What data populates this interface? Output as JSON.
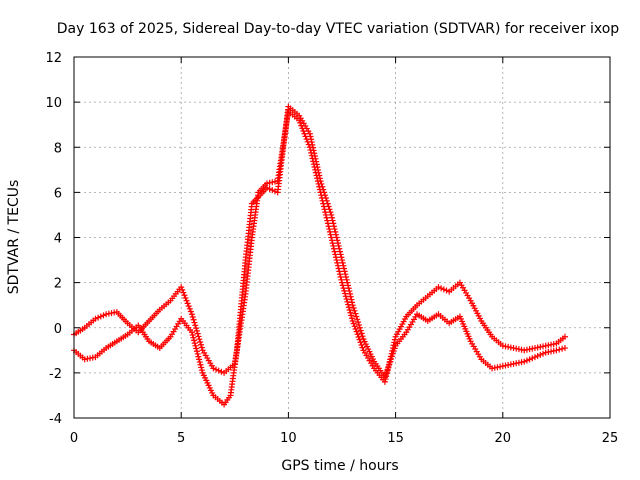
{
  "chart_data": {
    "type": "scatter",
    "title": "Day 163 of 2025, Sidereal Day-to-day VTEC variation (SDTVAR) for receiver ixop",
    "xlabel": "GPS time / hours",
    "ylabel": "SDTVAR / TECUs",
    "xlim": [
      0,
      25
    ],
    "ylim": [
      -4,
      12
    ],
    "xticks": [
      0,
      5,
      10,
      15,
      20,
      25
    ],
    "yticks": [
      -4,
      -2,
      0,
      2,
      4,
      6,
      8,
      10,
      12
    ],
    "grid": true,
    "marker": "plus",
    "color": "#ff0000",
    "series": [
      {
        "name": "trace A",
        "x": [
          0.0,
          0.5,
          1.0,
          1.5,
          2.0,
          2.5,
          3.0,
          3.5,
          4.0,
          4.5,
          5.0,
          5.5,
          6.0,
          6.5,
          7.0,
          7.5,
          8.0,
          8.3,
          8.6,
          9.0,
          9.5,
          10.0,
          10.5,
          11.0,
          11.5,
          12.0,
          12.5,
          13.0,
          13.5,
          14.0,
          14.5,
          15.0,
          15.5,
          16.0,
          16.5,
          17.0,
          17.5,
          18.0,
          18.5,
          19.0,
          19.5,
          20.0,
          20.5,
          21.0,
          21.5,
          22.0,
          22.5,
          22.9
        ],
        "y": [
          -0.3,
          0.0,
          0.4,
          0.6,
          0.7,
          0.2,
          -0.2,
          0.3,
          0.8,
          1.2,
          1.8,
          0.6,
          -1.0,
          -1.8,
          -2.0,
          -1.6,
          1.5,
          4.0,
          6.0,
          6.4,
          6.5,
          9.6,
          9.2,
          8.0,
          6.0,
          4.0,
          2.0,
          0.3,
          -1.0,
          -1.8,
          -2.4,
          -0.4,
          0.5,
          1.0,
          1.4,
          1.8,
          1.6,
          2.0,
          1.2,
          0.3,
          -0.4,
          -0.8,
          -0.9,
          -1.0,
          -0.9,
          -0.8,
          -0.7,
          -0.4
        ]
      },
      {
        "name": "trace B",
        "x": [
          0.0,
          0.5,
          1.0,
          1.5,
          2.0,
          2.5,
          3.0,
          3.5,
          4.0,
          4.5,
          5.0,
          5.5,
          6.0,
          6.5,
          7.0,
          7.3,
          7.6,
          8.0,
          8.3,
          8.6,
          9.0,
          9.5,
          10.0,
          10.5,
          11.0,
          11.5,
          12.0,
          12.5,
          13.0,
          13.5,
          14.0,
          14.5,
          15.0,
          15.5,
          16.0,
          16.5,
          17.0,
          17.5,
          18.0,
          18.5,
          19.0,
          19.5,
          20.0,
          20.5,
          21.0,
          21.5,
          22.0,
          22.5,
          22.9
        ],
        "y": [
          -1.0,
          -1.4,
          -1.3,
          -0.9,
          -0.6,
          -0.3,
          0.1,
          -0.6,
          -0.9,
          -0.4,
          0.4,
          -0.2,
          -2.0,
          -3.0,
          -3.4,
          -3.0,
          -1.0,
          3.0,
          5.5,
          5.8,
          6.2,
          6.0,
          9.8,
          9.4,
          8.6,
          6.5,
          5.0,
          3.0,
          1.0,
          -0.5,
          -1.5,
          -2.2,
          -0.8,
          -0.2,
          0.6,
          0.3,
          0.6,
          0.2,
          0.5,
          -0.6,
          -1.4,
          -1.8,
          -1.7,
          -1.6,
          -1.5,
          -1.3,
          -1.1,
          -1.0,
          -0.9
        ]
      }
    ]
  }
}
